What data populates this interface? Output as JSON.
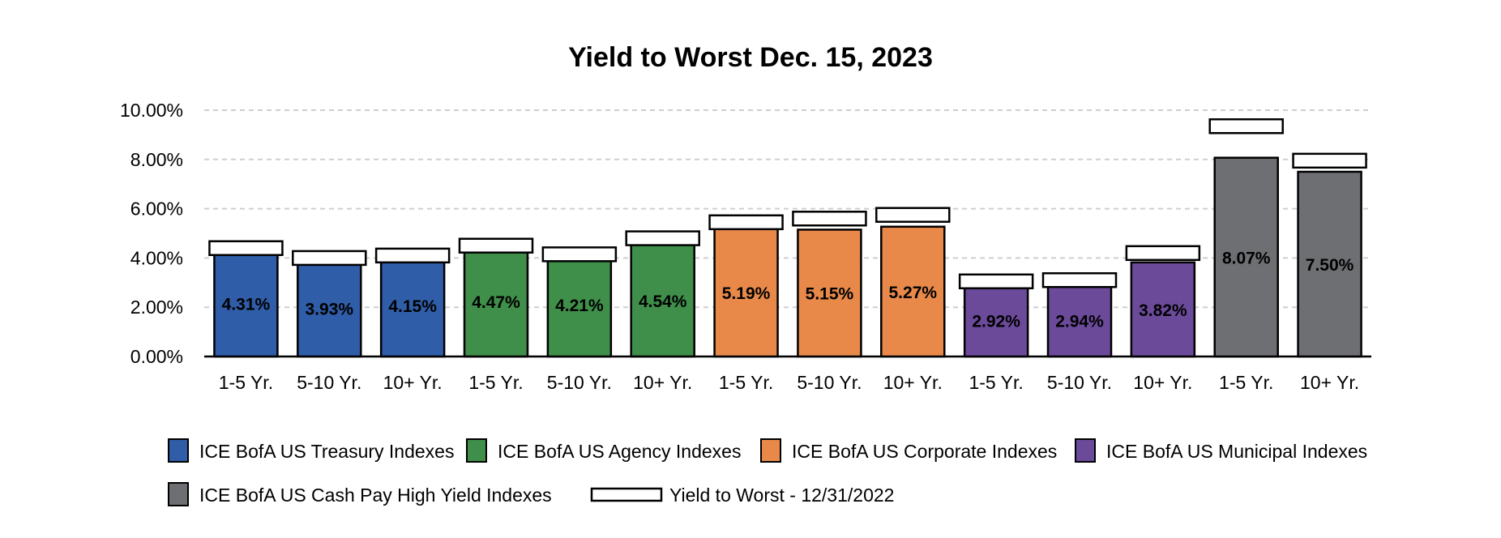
{
  "chart_data": {
    "type": "bar",
    "title": "Yield to Worst Dec. 15, 2023",
    "xlabel": "",
    "ylabel": "",
    "ylim": [
      0,
      10
    ],
    "y_ticks": [
      "0.00%",
      "2.00%",
      "4.00%",
      "6.00%",
      "8.00%",
      "10.00%"
    ],
    "y_tick_values": [
      0,
      2,
      4,
      6,
      8,
      10
    ],
    "grid": true,
    "legend_position": "bottom",
    "groups": [
      {
        "name": "ICE BofA US Treasury Indexes",
        "color": "#2F5DA8",
        "bars": [
          {
            "category": "1-5 Yr.",
            "value": 4.31,
            "label": "4.31%",
            "prior": 4.4
          },
          {
            "category": "5-10 Yr.",
            "value": 3.93,
            "label": "3.93%",
            "prior": 4.0
          },
          {
            "category": "10+ Yr.",
            "value": 4.15,
            "label": "4.15%",
            "prior": 4.1
          }
        ]
      },
      {
        "name": "ICE BofA US Agency Indexes",
        "color": "#3F8E4A",
        "bars": [
          {
            "category": "1-5 Yr.",
            "value": 4.47,
            "label": "4.47%",
            "prior": 4.5
          },
          {
            "category": "5-10 Yr.",
            "value": 4.21,
            "label": "4.21%",
            "prior": 4.15
          },
          {
            "category": "10+ Yr.",
            "value": 4.54,
            "label": "4.54%",
            "prior": 4.8
          }
        ]
      },
      {
        "name": "ICE BofA US Corporate Indexes",
        "color": "#E8894A",
        "bars": [
          {
            "category": "1-5 Yr.",
            "value": 5.19,
            "label": "5.19%",
            "prior": 5.45
          },
          {
            "category": "5-10 Yr.",
            "value": 5.15,
            "label": "5.15%",
            "prior": 5.6
          },
          {
            "category": "10+ Yr.",
            "value": 5.27,
            "label": "5.27%",
            "prior": 5.75
          }
        ]
      },
      {
        "name": "ICE BofA US Municipal Indexes",
        "color": "#6B4A9A",
        "bars": [
          {
            "category": "1-5 Yr.",
            "value": 2.92,
            "label": "2.92%",
            "prior": 3.05
          },
          {
            "category": "5-10 Yr.",
            "value": 2.94,
            "label": "2.94%",
            "prior": 3.1
          },
          {
            "category": "10+ Yr.",
            "value": 3.82,
            "label": "3.82%",
            "prior": 4.2
          }
        ]
      },
      {
        "name": "ICE BofA US Cash Pay High Yield Indexes",
        "color": "#6E6F72",
        "bars": [
          {
            "category": "1-5 Yr.",
            "value": 8.07,
            "label": "8.07%",
            "prior": 9.35
          },
          {
            "category": "10+ Yr.",
            "value": 7.5,
            "label": "7.50%",
            "prior": 7.95
          }
        ]
      }
    ],
    "prior_series_name": "Yield to Worst - 12/31/2022"
  }
}
